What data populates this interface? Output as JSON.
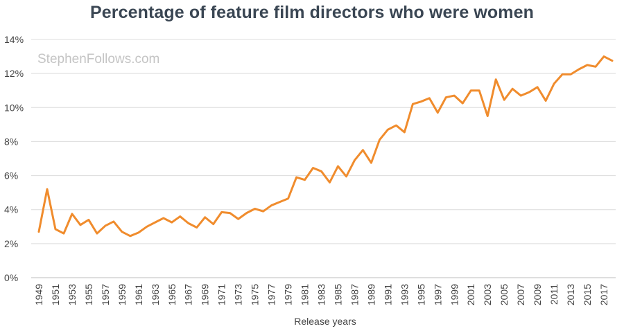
{
  "watermark": "StephenFollows.com",
  "chart_data": {
    "type": "line",
    "title": "Percentage of feature film directors who were women",
    "xlabel": "Release years",
    "ylabel": "",
    "y_tick_format": "percent",
    "ylim": [
      0,
      14
    ],
    "y_ticks": [
      0,
      2,
      4,
      6,
      8,
      10,
      12,
      14
    ],
    "x_tick_labels": [
      1949,
      1951,
      1953,
      1955,
      1957,
      1959,
      1961,
      1963,
      1965,
      1967,
      1969,
      1971,
      1973,
      1975,
      1977,
      1979,
      1981,
      1983,
      1985,
      1987,
      1989,
      1991,
      1993,
      1995,
      1997,
      1999,
      2001,
      2003,
      2005,
      2007,
      2009,
      2011,
      2013,
      2015,
      2017
    ],
    "grid": "horizontal",
    "line_color": "#f08c2d",
    "x": [
      1949,
      1950,
      1951,
      1952,
      1953,
      1954,
      1955,
      1956,
      1957,
      1958,
      1959,
      1960,
      1961,
      1962,
      1963,
      1964,
      1965,
      1966,
      1967,
      1968,
      1969,
      1970,
      1971,
      1972,
      1973,
      1974,
      1975,
      1976,
      1977,
      1978,
      1979,
      1980,
      1981,
      1982,
      1983,
      1984,
      1985,
      1986,
      1987,
      1988,
      1989,
      1990,
      1991,
      1992,
      1993,
      1994,
      1995,
      1996,
      1997,
      1998,
      1999,
      2000,
      2001,
      2002,
      2003,
      2004,
      2005,
      2006,
      2007,
      2008,
      2009,
      2010,
      2011,
      2012,
      2013,
      2014,
      2015,
      2016,
      2017,
      2018
    ],
    "values": [
      2.7,
      5.2,
      2.85,
      2.6,
      3.75,
      3.1,
      3.4,
      2.6,
      3.05,
      3.3,
      2.7,
      2.45,
      2.65,
      3.0,
      3.25,
      3.5,
      3.25,
      3.6,
      3.2,
      2.95,
      3.55,
      3.15,
      3.85,
      3.8,
      3.45,
      3.8,
      4.05,
      3.9,
      4.25,
      4.45,
      4.65,
      5.9,
      5.75,
      6.45,
      6.25,
      5.6,
      6.55,
      5.95,
      6.9,
      7.5,
      6.75,
      8.1,
      8.7,
      8.95,
      8.55,
      10.2,
      10.35,
      10.55,
      9.7,
      10.6,
      10.7,
      10.25,
      11.0,
      11.0,
      9.5,
      11.65,
      10.45,
      11.1,
      10.7,
      10.9,
      11.2,
      10.4,
      11.4,
      11.95,
      11.95,
      12.25,
      12.5,
      12.4,
      13.0,
      12.75
    ]
  }
}
